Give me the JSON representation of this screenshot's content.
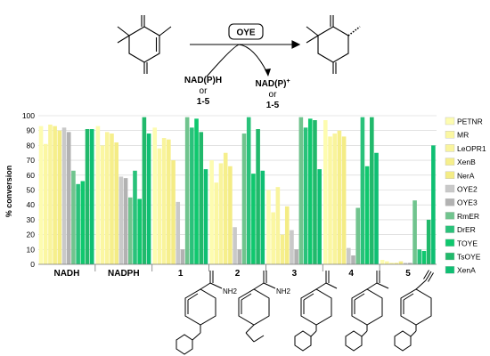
{
  "scheme": {
    "enzyme": "OYE",
    "cofactor_line1": "NAD(P)H",
    "cofactor_or": "or",
    "cofactor_line3": "1-5",
    "product_line1": "NAD(P)",
    "product_sup": "+",
    "product_or": "or",
    "product_line3": "1-5"
  },
  "structures": {
    "s1_group": "NH2",
    "s2_group": "NH2"
  },
  "chart_data": {
    "type": "bar",
    "ylabel": "% conversion",
    "ylim": [
      0,
      100
    ],
    "yticks": [
      0,
      10,
      20,
      30,
      40,
      50,
      60,
      70,
      80,
      90,
      100
    ],
    "grid": true,
    "legend_position": "right",
    "categories": [
      "NADH",
      "NADPH",
      "1",
      "2",
      "3",
      "4",
      "5"
    ],
    "series": [
      {
        "name": "PETNR",
        "color": "#fdfcb0",
        "values": [
          93,
          93,
          92,
          70,
          50,
          97,
          3
        ]
      },
      {
        "name": "MR",
        "color": "#fbf7a2",
        "values": [
          81,
          80,
          78,
          55,
          35,
          86,
          2
        ]
      },
      {
        "name": "LeOPR1",
        "color": "#f9f49d",
        "values": [
          94,
          89,
          85,
          68,
          52,
          88,
          1
        ]
      },
      {
        "name": "XenB",
        "color": "#f6ef8c",
        "values": [
          93,
          88,
          84,
          75,
          20,
          90,
          1
        ]
      },
      {
        "name": "NerA",
        "color": "#f4ec85",
        "values": [
          90,
          82,
          70,
          66,
          39,
          86,
          2
        ]
      },
      {
        "name": "OYE2",
        "color": "#c9c9c9",
        "values": [
          92,
          59,
          42,
          25,
          23,
          11,
          1
        ]
      },
      {
        "name": "OYE3",
        "color": "#b2b2b2",
        "values": [
          89,
          58,
          10,
          10,
          10,
          6,
          1
        ]
      },
      {
        "name": "RmER",
        "color": "#70c48e",
        "values": [
          63,
          45,
          99,
          88,
          99,
          38,
          43
        ]
      },
      {
        "name": "DrER",
        "color": "#29c27a",
        "values": [
          54,
          63,
          92,
          99,
          92,
          99,
          10
        ]
      },
      {
        "name": "TOYE",
        "color": "#0fc86e",
        "values": [
          56,
          44,
          98,
          61,
          98,
          66,
          9
        ]
      },
      {
        "name": "TsOYE",
        "color": "#21b96b",
        "values": [
          91,
          99,
          89,
          91,
          97,
          99,
          30
        ]
      },
      {
        "name": "XenA",
        "color": "#0fbf73",
        "values": [
          91,
          88,
          64,
          63,
          64,
          75,
          80
        ]
      }
    ]
  }
}
